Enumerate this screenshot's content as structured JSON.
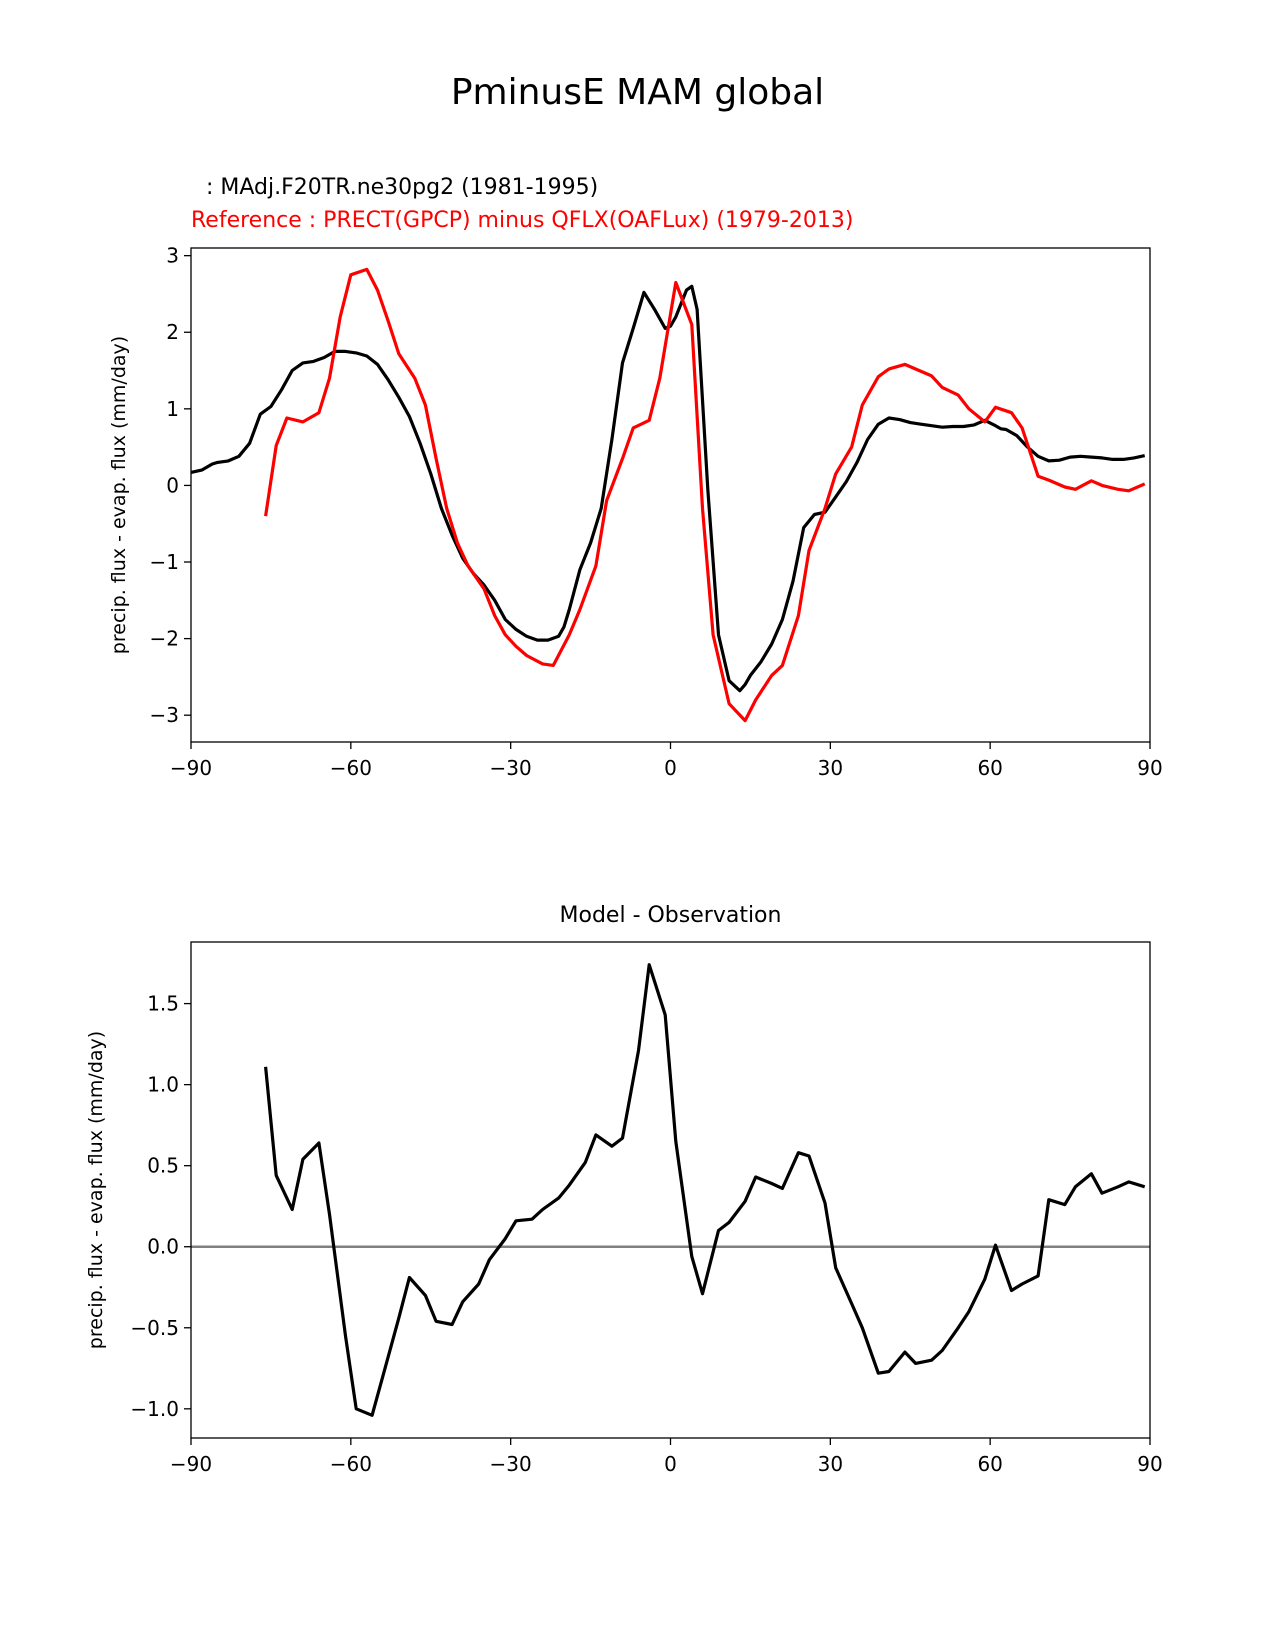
{
  "figure_title": "PminusE MAM global",
  "legend": {
    "model_label": ": MAdj.F20TR.ne30pg2 (1981-1995)",
    "reference_label": "Reference : PRECT(GPCP) minus QFLX(OAFLux) (1979-2013)"
  },
  "colors": {
    "model": "#000000",
    "reference": "#ff0000",
    "zero_line": "#808080"
  },
  "chart_data": [
    {
      "type": "line",
      "title": "",
      "xlabel": "",
      "ylabel": "precip. flux - evap. flux (mm/day)",
      "xlim": [
        -90,
        90
      ],
      "ylim": [
        -3.35,
        3.1
      ],
      "xticks": [
        -90,
        -60,
        -30,
        0,
        30,
        60,
        90
      ],
      "xtick_labels": [
        "−90",
        "−60",
        "−30",
        "0",
        "30",
        "60",
        "90"
      ],
      "yticks": [
        -3,
        -2,
        -1,
        0,
        1,
        2,
        3
      ],
      "ytick_labels": [
        "−3",
        "−2",
        "−1",
        "0",
        "1",
        "2",
        "3"
      ],
      "series": [
        {
          "name": "MAdj.F20TR.ne30pg2 (1981-1995)",
          "color": "#000000",
          "x": [
            -90,
            -88,
            -86,
            -85,
            -83,
            -81,
            -79,
            -77,
            -75,
            -73,
            -71,
            -69,
            -67,
            -65,
            -63,
            -61,
            -59,
            -57,
            -55,
            -53,
            -51,
            -49,
            -47,
            -45,
            -43,
            -41,
            -39,
            -37,
            -35,
            -33,
            -31,
            -29,
            -27,
            -25,
            -23,
            -21,
            -20,
            -19,
            -17,
            -15,
            -13,
            -11,
            -9,
            -7,
            -5,
            -3,
            -1,
            0,
            1,
            3,
            4,
            5,
            7,
            9,
            11,
            13,
            14,
            15,
            17,
            19,
            21,
            23,
            25,
            27,
            29,
            31,
            33,
            35,
            37,
            39,
            41,
            43,
            45,
            47,
            49,
            51,
            53,
            55,
            57,
            59,
            61,
            62,
            63,
            65,
            67,
            69,
            71,
            73,
            75,
            77,
            79,
            81,
            83,
            85,
            87,
            89
          ],
          "y": [
            0.17,
            0.2,
            0.28,
            0.3,
            0.32,
            0.38,
            0.55,
            0.93,
            1.03,
            1.25,
            1.5,
            1.6,
            1.62,
            1.67,
            1.75,
            1.75,
            1.73,
            1.69,
            1.58,
            1.38,
            1.15,
            0.9,
            0.55,
            0.15,
            -0.3,
            -0.65,
            -0.95,
            -1.15,
            -1.3,
            -1.5,
            -1.75,
            -1.88,
            -1.97,
            -2.02,
            -2.02,
            -1.97,
            -1.85,
            -1.62,
            -1.1,
            -0.75,
            -0.3,
            0.6,
            1.6,
            2.05,
            2.52,
            2.3,
            2.05,
            2.08,
            2.2,
            2.55,
            2.6,
            2.3,
            -0.05,
            -1.95,
            -2.55,
            -2.68,
            -2.6,
            -2.48,
            -2.3,
            -2.07,
            -1.75,
            -1.25,
            -0.55,
            -0.38,
            -0.35,
            -0.15,
            0.05,
            0.3,
            0.6,
            0.8,
            0.88,
            0.86,
            0.82,
            0.8,
            0.78,
            0.76,
            0.77,
            0.77,
            0.79,
            0.85,
            0.78,
            0.74,
            0.73,
            0.65,
            0.5,
            0.38,
            0.32,
            0.33,
            0.37,
            0.38,
            0.37,
            0.36,
            0.34,
            0.34,
            0.36,
            0.39
          ]
        },
        {
          "name": "Reference : PRECT(GPCP) minus QFLX(OAFLux) (1979-2013)",
          "color": "#ff0000",
          "x": [
            -76,
            -74,
            -72,
            -69,
            -66,
            -64,
            -62,
            -60,
            -57,
            -55,
            -53,
            -51,
            -48,
            -46,
            -44,
            -42,
            -40,
            -38,
            -35,
            -33,
            -31,
            -29,
            -27,
            -24,
            -22,
            -19,
            -17,
            -14,
            -12,
            -9,
            -7,
            -4,
            -2,
            1,
            4,
            6,
            8,
            11,
            14,
            16,
            19,
            21,
            24,
            26,
            29,
            31,
            34,
            36,
            39,
            41,
            44,
            46,
            49,
            51,
            54,
            56,
            59,
            61,
            64,
            66,
            69,
            71,
            74,
            76,
            79,
            81,
            84,
            86,
            89
          ],
          "y": [
            -0.4,
            0.52,
            0.88,
            0.83,
            0.95,
            1.4,
            2.2,
            2.75,
            2.82,
            2.55,
            2.15,
            1.72,
            1.4,
            1.05,
            0.35,
            -0.3,
            -0.75,
            -1.05,
            -1.35,
            -1.7,
            -1.95,
            -2.1,
            -2.22,
            -2.33,
            -2.35,
            -1.95,
            -1.62,
            -1.05,
            -0.2,
            0.35,
            0.75,
            0.85,
            1.4,
            2.65,
            2.1,
            -0.3,
            -1.95,
            -2.85,
            -3.07,
            -2.8,
            -2.48,
            -2.35,
            -1.7,
            -0.85,
            -0.3,
            0.15,
            0.5,
            1.05,
            1.42,
            1.52,
            1.58,
            1.52,
            1.43,
            1.28,
            1.18,
            1.0,
            0.83,
            1.02,
            0.95,
            0.75,
            0.12,
            0.07,
            -0.02,
            -0.05,
            0.06,
            0.0,
            -0.05,
            -0.07,
            0.02
          ]
        }
      ]
    },
    {
      "type": "line",
      "title": "Model - Observation",
      "xlabel": "",
      "ylabel": "precip. flux - evap. flux (mm/day)",
      "xlim": [
        -90,
        90
      ],
      "ylim": [
        -1.18,
        1.88
      ],
      "xticks": [
        -90,
        -60,
        -30,
        0,
        30,
        60,
        90
      ],
      "xtick_labels": [
        "−90",
        "−60",
        "−30",
        "0",
        "30",
        "60",
        "90"
      ],
      "yticks": [
        -1.0,
        -0.5,
        0.0,
        0.5,
        1.0,
        1.5
      ],
      "ytick_labels": [
        "−1.0",
        "−0.5",
        "0.0",
        "0.5",
        "1.0",
        "1.5"
      ],
      "zero_line": 0.0,
      "series": [
        {
          "name": "Model - Observation",
          "color": "#000000",
          "x": [
            -76,
            -74,
            -71,
            -69,
            -66,
            -64,
            -61,
            -59,
            -56,
            -54,
            -51,
            -49,
            -46,
            -44,
            -41,
            -39,
            -36,
            -34,
            -31,
            -29,
            -26,
            -24,
            -21,
            -19,
            -16,
            -14,
            -11,
            -9,
            -6,
            -4,
            -1,
            1,
            4,
            6,
            9,
            11,
            14,
            16,
            19,
            21,
            24,
            26,
            29,
            31,
            34,
            36,
            39,
            41,
            44,
            46,
            49,
            51,
            54,
            56,
            59,
            61,
            64,
            66,
            69,
            71,
            74,
            76,
            79,
            81,
            84,
            86,
            89
          ],
          "y": [
            1.11,
            0.44,
            0.23,
            0.54,
            0.64,
            0.2,
            -0.55,
            -1.0,
            -1.04,
            -0.8,
            -0.44,
            -0.19,
            -0.3,
            -0.46,
            -0.48,
            -0.34,
            -0.23,
            -0.08,
            0.05,
            0.16,
            0.17,
            0.23,
            0.3,
            0.38,
            0.52,
            0.69,
            0.62,
            0.67,
            1.21,
            1.74,
            1.43,
            0.65,
            -0.06,
            -0.29,
            0.1,
            0.15,
            0.28,
            0.43,
            0.39,
            0.36,
            0.58,
            0.56,
            0.27,
            -0.13,
            -0.35,
            -0.5,
            -0.78,
            -0.77,
            -0.65,
            -0.72,
            -0.7,
            -0.64,
            -0.5,
            -0.4,
            -0.2,
            0.01,
            -0.27,
            -0.23,
            -0.18,
            0.29,
            0.26,
            0.37,
            0.45,
            0.33,
            0.37,
            0.4,
            0.37
          ]
        }
      ]
    }
  ]
}
